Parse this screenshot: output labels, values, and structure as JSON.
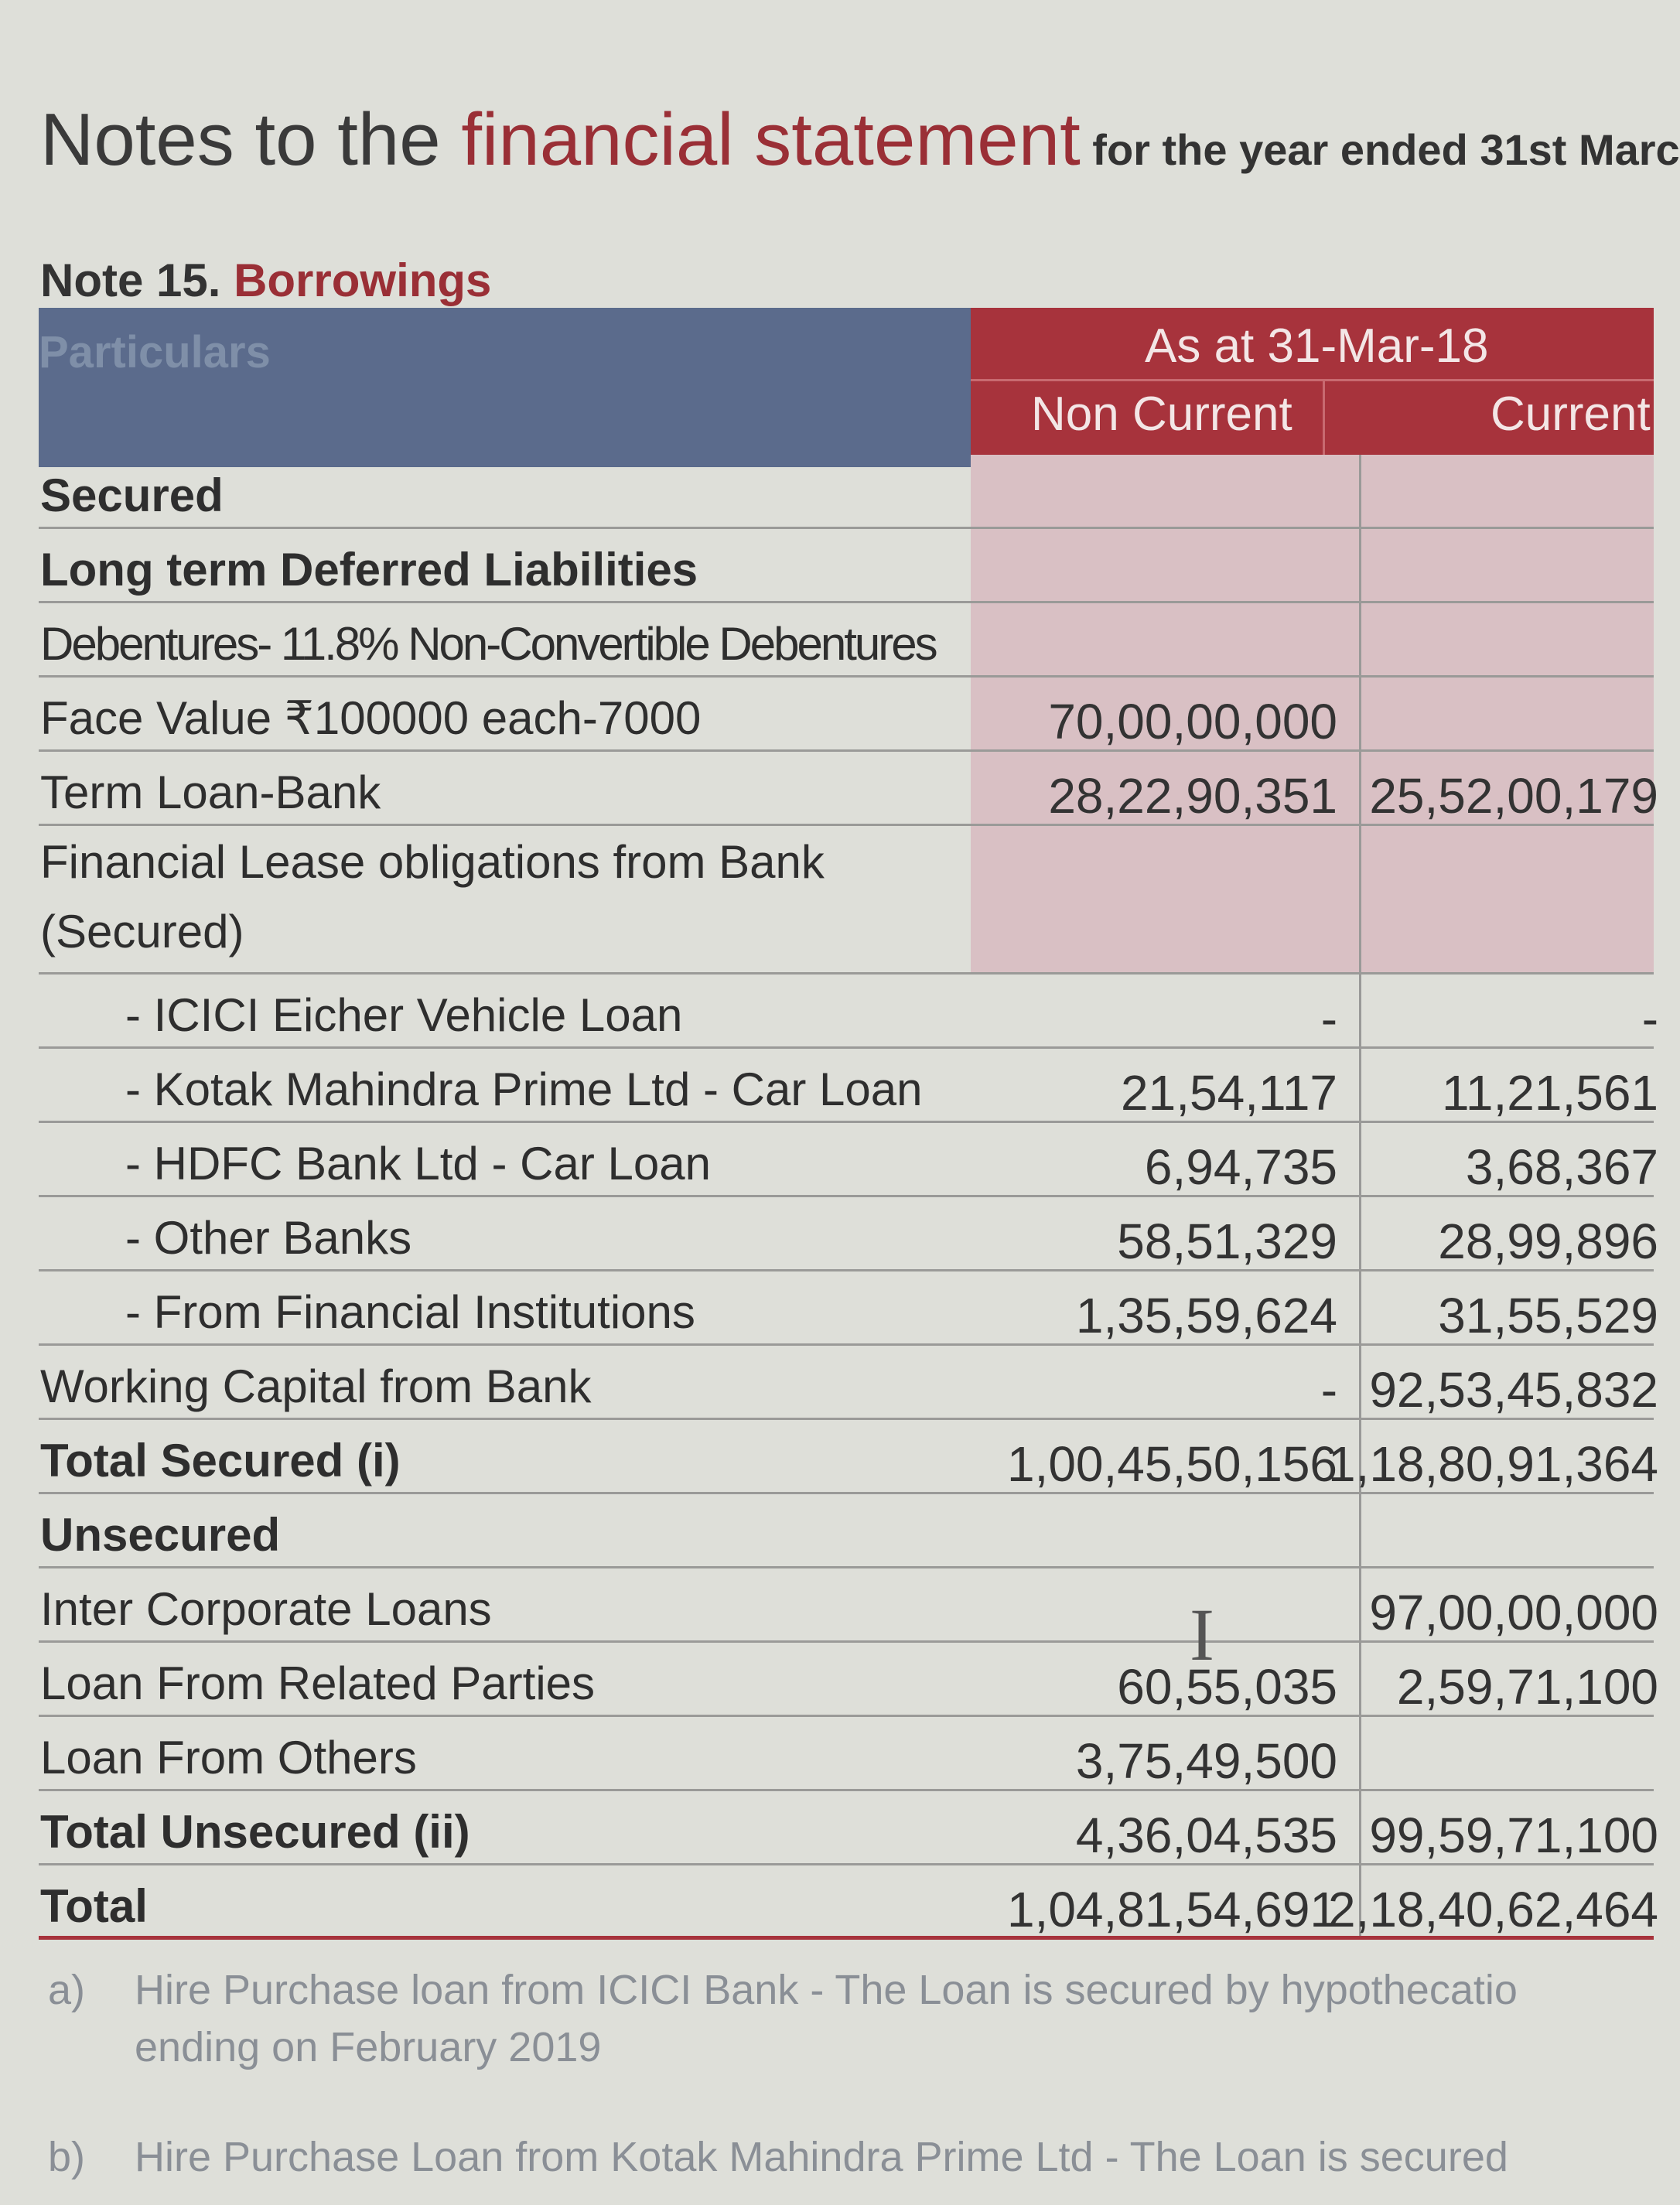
{
  "header": {
    "title_main_1": "Notes to the ",
    "title_main_2": "financial statement",
    "title_suffix": " for the year ended 31st Marc",
    "note_number": "Note 15. ",
    "note_title": "Borrowings"
  },
  "table": {
    "col_particulars": "Particulars",
    "col_group": "As at 31-Mar-18",
    "col_non_current": "Non Current",
    "col_current": "Current",
    "rows": [
      {
        "label": "Secured",
        "non_current": "",
        "current": ""
      },
      {
        "label": "Long term Deferred Liabilities",
        "non_current": "",
        "current": ""
      },
      {
        "label": "Debentures- 11.8% Non-Convertible Debentures",
        "non_current": "",
        "current": ""
      },
      {
        "label": "Face Value ₹100000 each-7000",
        "non_current": "70,00,00,000",
        "current": ""
      },
      {
        "label": "Term Loan-Bank",
        "non_current": "28,22,90,351",
        "current": "25,52,00,179"
      },
      {
        "label_line1": "Financial Lease obligations from Bank",
        "label_line2": "(Secured)",
        "non_current": "",
        "current": ""
      },
      {
        "label": "- ICICI Eicher Vehicle Loan",
        "non_current": "-",
        "current": "-"
      },
      {
        "label": "- Kotak Mahindra Prime Ltd - Car Loan",
        "non_current": "21,54,117",
        "current": "11,21,561"
      },
      {
        "label": "- HDFC Bank Ltd - Car Loan",
        "non_current": "6,94,735",
        "current": "3,68,367"
      },
      {
        "label": "- Other Banks",
        "non_current": "58,51,329",
        "current": "28,99,896"
      },
      {
        "label": "- From Financial Institutions",
        "non_current": "1,35,59,624",
        "current": "31,55,529"
      },
      {
        "label": "Working Capital from Bank",
        "non_current": "-",
        "current": "92,53,45,832"
      },
      {
        "label": "Total Secured (i)",
        "non_current": "1,00,45,50,156",
        "current": "1,18,80,91,364"
      },
      {
        "label": "Unsecured",
        "non_current": "",
        "current": ""
      },
      {
        "label": "Inter Corporate Loans",
        "non_current": "",
        "current": "97,00,00,000"
      },
      {
        "label": "Loan From Related Parties",
        "non_current": "60,55,035",
        "current": "2,59,71,100"
      },
      {
        "label": "Loan From Others",
        "non_current": "3,75,49,500",
        "current": ""
      },
      {
        "label": "Total Unsecured (ii)",
        "non_current": "4,36,04,535",
        "current": "99,59,71,100"
      },
      {
        "label": "Total",
        "non_current": "1,04,81,54,691",
        "current": "2,18,40,62,464"
      }
    ]
  },
  "footnotes": [
    {
      "marker": "a)",
      "line1": "Hire Purchase loan from ICICI Bank - The Loan is secured by hypothecatio",
      "line2": "ending on February 2019"
    },
    {
      "marker": "b)",
      "line1": "Hire Purchase Loan from Kotak Mahindra Prime Ltd - The Loan is secured"
    }
  ],
  "colors": {
    "accent_red": "#a7333c",
    "header_blue": "#5b6b8c",
    "secured_pink": "#d6a5b2"
  }
}
